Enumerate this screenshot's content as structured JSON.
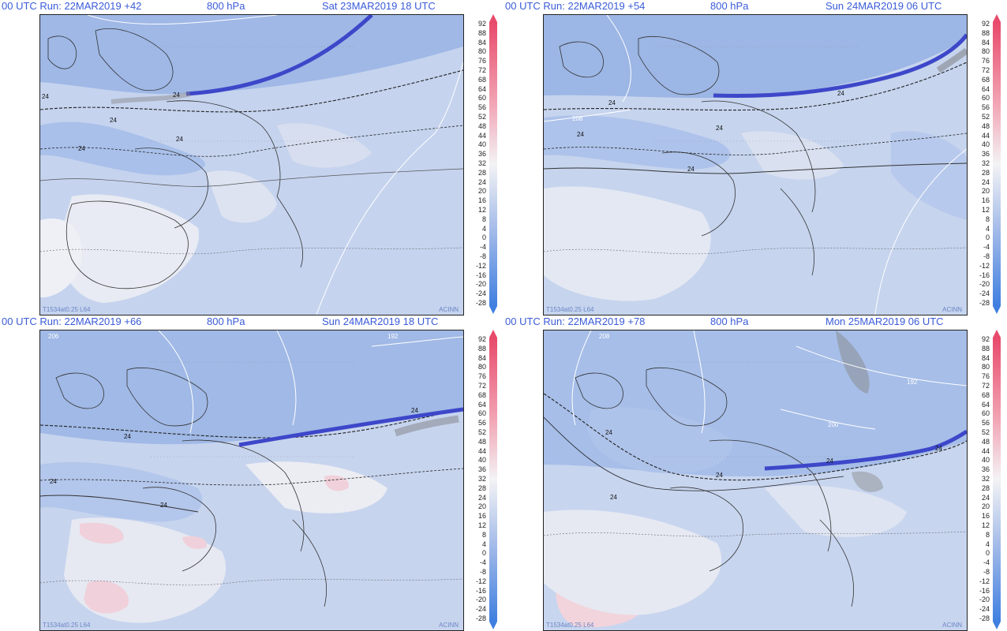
{
  "colorbar": {
    "labels": [
      "92",
      "88",
      "84",
      "80",
      "76",
      "72",
      "68",
      "64",
      "60",
      "56",
      "52",
      "48",
      "44",
      "40",
      "36",
      "32",
      "28",
      "24",
      "20",
      "16",
      "12",
      "8",
      "4",
      "0",
      "-4",
      "-8",
      "-12",
      "-16",
      "-20",
      "-24",
      "-28"
    ],
    "colors": {
      "top": "#e84a6b",
      "upper": "#f2a9b8",
      "mid": "#f3f3f5",
      "lower": "#9db7e8",
      "bottom": "#3f7fe0"
    }
  },
  "panels": [
    {
      "run": "00 UTC Run: 22MAR2019 +42",
      "level": "800 hPa",
      "valid": "Sat 23MAR2019 18 UTC",
      "tag_left": "T1534at0.25 L64",
      "tag_right": "ACINN",
      "contour_labels": [
        "24",
        "24",
        "24",
        "24",
        "24"
      ]
    },
    {
      "run": "00 UTC Run: 22MAR2019 +54",
      "level": "800 hPa",
      "valid": "Sun 24MAR2019 06 UTC",
      "tag_left": "T1534at0.25 L64",
      "tag_right": "ACINN",
      "contour_labels": [
        "24",
        "24",
        "24",
        "24",
        "24",
        "208"
      ]
    },
    {
      "run": "00 UTC Run: 22MAR2019 +66",
      "level": "800 hPa",
      "valid": "Sun 24MAR2019 18 UTC",
      "tag_left": "T1534at0.25 L64",
      "tag_right": "ACINN",
      "contour_labels": [
        "24",
        "24",
        "24",
        "24",
        "206",
        "192"
      ]
    },
    {
      "run": "00 UTC Run: 22MAR2019 +78",
      "level": "800 hPa",
      "valid": "Mon 25MAR2019 06 UTC",
      "tag_left": "T1534at0.25 L64",
      "tag_right": "ACINN",
      "contour_labels": [
        "24",
        "24",
        "24",
        "24",
        "24",
        "208",
        "200",
        "192"
      ]
    }
  ]
}
